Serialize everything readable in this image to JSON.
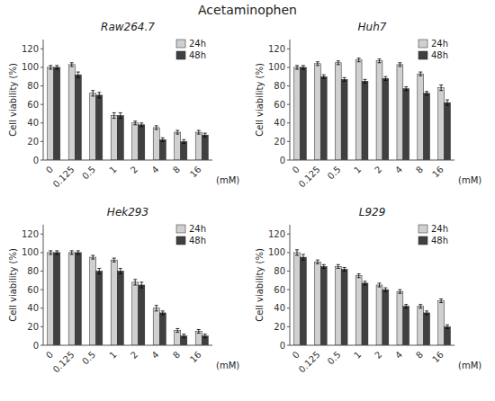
{
  "title": "Acetaminophen",
  "chart_data": [
    {
      "type": "bar",
      "title": "Raw264.7",
      "xlabel": "(mM)",
      "ylabel": "Cell viability (%)",
      "categories": [
        "0",
        "0.125",
        "0.5",
        "1",
        "2",
        "4",
        "8",
        "16"
      ],
      "series": [
        {
          "name": "24h",
          "color": "#d0d0d0",
          "values": [
            100,
            103,
            72,
            48,
            40,
            35,
            30,
            30
          ],
          "errors": [
            2,
            2,
            3,
            3,
            2,
            2,
            2,
            2
          ]
        },
        {
          "name": "48h",
          "color": "#404040",
          "values": [
            100,
            92,
            70,
            48,
            38,
            22,
            20,
            27
          ],
          "errors": [
            2,
            3,
            3,
            3,
            2,
            2,
            2,
            2
          ]
        }
      ],
      "ylim": [
        0,
        130
      ],
      "yticks": [
        0,
        20,
        40,
        60,
        80,
        100,
        120
      ],
      "grid": false,
      "legend": "upper right"
    },
    {
      "type": "bar",
      "title": "Huh7",
      "xlabel": "(mM)",
      "ylabel": "Cell viability (%)",
      "categories": [
        "0",
        "0.125",
        "0.5",
        "1",
        "2",
        "4",
        "8",
        "16"
      ],
      "series": [
        {
          "name": "24h",
          "color": "#d0d0d0",
          "values": [
            100,
            104,
            105,
            108,
            107,
            103,
            93,
            78
          ],
          "errors": [
            2,
            2,
            2,
            2,
            2,
            2,
            2,
            3
          ]
        },
        {
          "name": "48h",
          "color": "#404040",
          "values": [
            100,
            90,
            87,
            85,
            88,
            77,
            72,
            62
          ],
          "errors": [
            2,
            2,
            2,
            2,
            2,
            2,
            2,
            3
          ]
        }
      ],
      "ylim": [
        0,
        130
      ],
      "yticks": [
        0,
        20,
        40,
        60,
        80,
        100,
        120
      ],
      "grid": false,
      "legend": "upper right"
    },
    {
      "type": "bar",
      "title": "Hek293",
      "xlabel": "(mM)",
      "ylabel": "Cell viability (%)",
      "categories": [
        "0",
        "0.125",
        "0.5",
        "1",
        "2",
        "4",
        "8",
        "16"
      ],
      "series": [
        {
          "name": "24h",
          "color": "#d0d0d0",
          "values": [
            100,
            100,
            95,
            92,
            68,
            40,
            16,
            15
          ],
          "errors": [
            2,
            2,
            2,
            2,
            3,
            3,
            2,
            2
          ]
        },
        {
          "name": "48h",
          "color": "#404040",
          "values": [
            100,
            100,
            80,
            80,
            65,
            35,
            10,
            10
          ],
          "errors": [
            2,
            2,
            3,
            3,
            3,
            2,
            2,
            2
          ]
        }
      ],
      "ylim": [
        0,
        130
      ],
      "yticks": [
        0,
        20,
        40,
        60,
        80,
        100,
        120
      ],
      "grid": false,
      "legend": "upper right"
    },
    {
      "type": "bar",
      "title": "L929",
      "xlabel": "(mM)",
      "ylabel": "Cell viability (%)",
      "categories": [
        "0",
        "0.125",
        "0.5",
        "1",
        "2",
        "4",
        "8",
        "16"
      ],
      "series": [
        {
          "name": "24h",
          "color": "#d0d0d0",
          "values": [
            100,
            90,
            85,
            75,
            65,
            58,
            42,
            48
          ],
          "errors": [
            3,
            2,
            2,
            2,
            2,
            2,
            2,
            2
          ]
        },
        {
          "name": "48h",
          "color": "#404040",
          "values": [
            95,
            85,
            82,
            67,
            60,
            42,
            35,
            20
          ],
          "errors": [
            3,
            2,
            2,
            2,
            2,
            2,
            2,
            2
          ]
        }
      ],
      "ylim": [
        0,
        130
      ],
      "yticks": [
        0,
        20,
        40,
        60,
        80,
        100,
        120
      ],
      "grid": false,
      "legend": "upper right"
    }
  ]
}
